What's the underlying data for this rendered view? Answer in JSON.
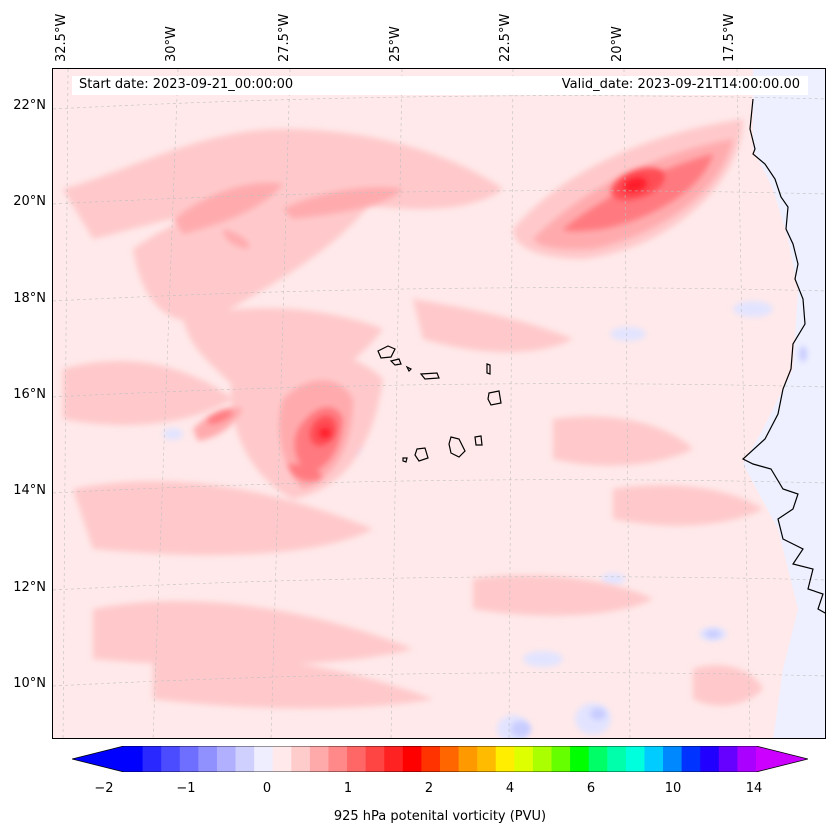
{
  "map": {
    "longitude_labels": [
      "32.5°W",
      "30°W",
      "27.5°W",
      "25°W",
      "22.5°W",
      "20°W",
      "17.5°W"
    ],
    "latitude_labels": [
      "22°N",
      "20°N",
      "18°N",
      "16°N",
      "14°N",
      "12°N",
      "10°N"
    ],
    "start_date": "Start date: 2023-09-21_00:00:00",
    "valid_date": "Valid_date: 2023-09-21T14:00:00.00",
    "background_color": "#ffe9ea",
    "land_color": "#eef0ff",
    "coastline_color": "#000000"
  },
  "colorbar": {
    "title": "925 hPa potenital vorticity (PVU)",
    "tick_labels": [
      "−2",
      "−1",
      "0",
      "1",
      "2",
      "4",
      "6",
      "10",
      "14"
    ],
    "colors": [
      "#0000ff",
      "#2828ff",
      "#4b4bff",
      "#6e6eff",
      "#9090ff",
      "#b0b0ff",
      "#d0d0ff",
      "#eeeeff",
      "#ffe9ea",
      "#ffcccc",
      "#ffaaaa",
      "#ff8888",
      "#ff6666",
      "#ff4444",
      "#ff2222",
      "#ff0000",
      "#ff3300",
      "#ff6600",
      "#ff9900",
      "#ffbb00",
      "#ffee00",
      "#ddff00",
      "#aaff00",
      "#66ff00",
      "#00ff00",
      "#00ff66",
      "#00ffaa",
      "#00ffdd",
      "#00ccff",
      "#0088ff",
      "#0033ff",
      "#2200ff",
      "#6600ff",
      "#aa00ff"
    ],
    "under_color": "#0000ff",
    "over_color": "#cc00ff"
  }
}
